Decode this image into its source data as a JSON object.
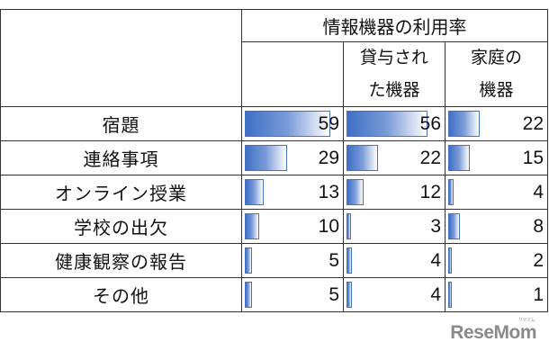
{
  "chart_data": {
    "type": "table",
    "header": {
      "group_title": "情報機器の利用率",
      "col2_line1": "貸与され",
      "col2_line2": "た機器",
      "col3_line1": "家庭の",
      "col3_line2": "機器"
    },
    "columns": [
      "情報機器の利用率",
      "貸与された機器",
      "家庭の機器"
    ],
    "categories": [
      "宿題",
      "連絡事項",
      "オンライン授業",
      "学校の出欠",
      "健康観察の報告",
      "その他"
    ],
    "series": [
      {
        "values": [
          59,
          29,
          13,
          10,
          5,
          5
        ]
      },
      {
        "values": [
          56,
          22,
          12,
          3,
          4,
          4
        ]
      },
      {
        "values": [
          22,
          15,
          4,
          8,
          2,
          1
        ]
      }
    ],
    "max": 59,
    "bar_color": "#4472c4"
  },
  "watermark": {
    "text": "ReseMom",
    "small": "リセマム"
  }
}
